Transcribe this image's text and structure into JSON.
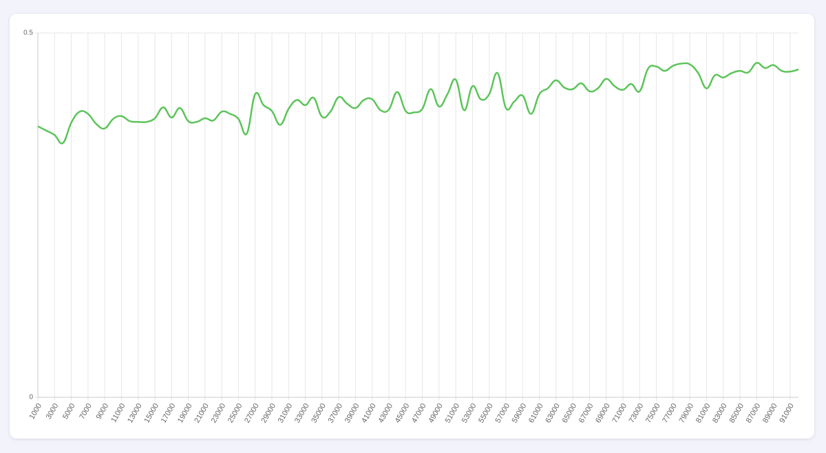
{
  "chart_data": {
    "type": "line",
    "x": [
      1000,
      2000,
      3000,
      4000,
      5000,
      6000,
      7000,
      8000,
      9000,
      10000,
      11000,
      12000,
      13000,
      14000,
      15000,
      16000,
      17000,
      18000,
      19000,
      20000,
      21000,
      22000,
      23000,
      24000,
      25000,
      26000,
      27000,
      28000,
      29000,
      30000,
      31000,
      32000,
      33000,
      34000,
      35000,
      36000,
      37000,
      38000,
      39000,
      40000,
      41000,
      42000,
      43000,
      44000,
      45000,
      46000,
      47000,
      48000,
      49000,
      50000,
      51000,
      52000,
      53000,
      54000,
      55000,
      56000,
      57000,
      58000,
      59000,
      60000,
      61000,
      62000,
      63000,
      64000,
      65000,
      66000,
      67000,
      68000,
      69000,
      70000,
      71000,
      72000,
      73000,
      74000,
      75000,
      76000,
      77000,
      78000,
      79000,
      80000,
      81000,
      82000,
      83000,
      84000,
      85000,
      86000,
      87000,
      88000,
      89000,
      90000,
      91000,
      92000
    ],
    "series": [
      {
        "color": "#5cc45a",
        "values": [
          0.372,
          0.366,
          0.36,
          0.349,
          0.377,
          0.392,
          0.389,
          0.375,
          0.369,
          0.382,
          0.386,
          0.379,
          0.378,
          0.378,
          0.383,
          0.398,
          0.384,
          0.397,
          0.379,
          0.378,
          0.383,
          0.38,
          0.392,
          0.389,
          0.382,
          0.362,
          0.416,
          0.401,
          0.393,
          0.374,
          0.396,
          0.408,
          0.401,
          0.411,
          0.385,
          0.392,
          0.412,
          0.403,
          0.397,
          0.408,
          0.409,
          0.394,
          0.395,
          0.419,
          0.393,
          0.391,
          0.396,
          0.423,
          0.399,
          0.416,
          0.436,
          0.394,
          0.427,
          0.409,
          0.416,
          0.445,
          0.397,
          0.406,
          0.414,
          0.389,
          0.416,
          0.424,
          0.435,
          0.425,
          0.423,
          0.431,
          0.42,
          0.424,
          0.437,
          0.427,
          0.422,
          0.43,
          0.42,
          0.451,
          0.454,
          0.448,
          0.455,
          0.458,
          0.457,
          0.445,
          0.424,
          0.442,
          0.439,
          0.445,
          0.448,
          0.446,
          0.459,
          0.452,
          0.456,
          0.448,
          0.447,
          0.45
        ]
      }
    ],
    "xlim": [
      1000,
      92000
    ],
    "xticks": [
      1000,
      3000,
      5000,
      7000,
      9000,
      11000,
      13000,
      15000,
      17000,
      19000,
      21000,
      23000,
      25000,
      27000,
      29000,
      31000,
      33000,
      35000,
      37000,
      39000,
      41000,
      43000,
      45000,
      47000,
      49000,
      51000,
      53000,
      55000,
      57000,
      59000,
      61000,
      63000,
      65000,
      67000,
      69000,
      71000,
      73000,
      75000,
      77000,
      79000,
      81000,
      83000,
      85000,
      87000,
      89000,
      91000
    ],
    "ylim": [
      0,
      0.5
    ],
    "yticks": [
      0,
      0.5
    ],
    "grid": true
  }
}
